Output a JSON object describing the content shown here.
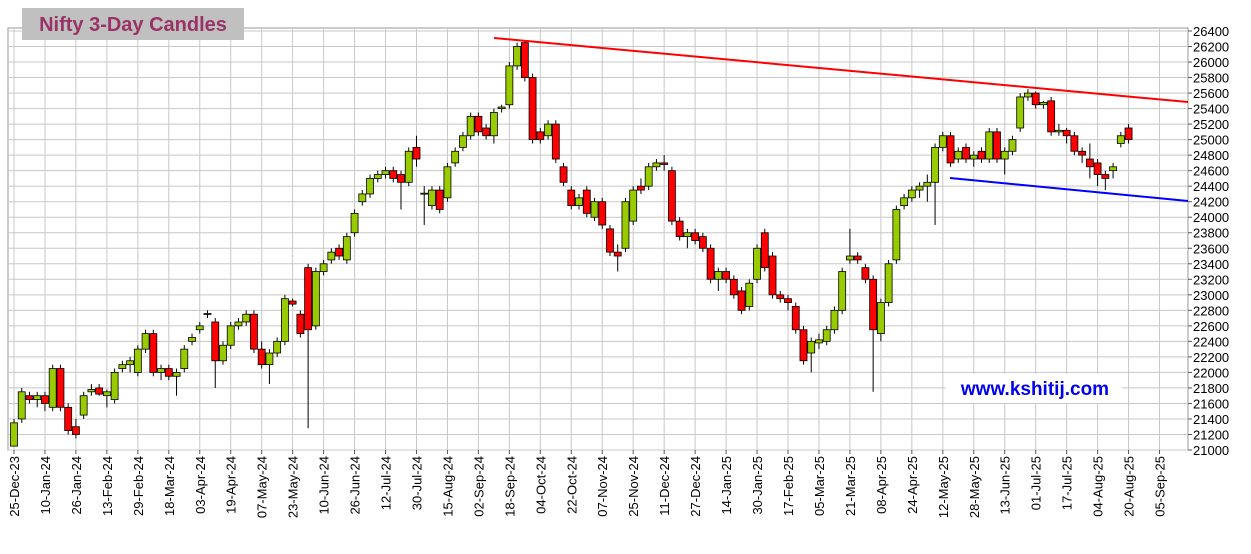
{
  "chart_data": {
    "type": "candlestick",
    "title": "Nifty 3-Day Candles",
    "watermark": "www.kshitij.com",
    "categories": [
      "25-Dec-23",
      null,
      null,
      null,
      "10-Jan-24",
      null,
      null,
      null,
      "26-Jan-24",
      null,
      null,
      null,
      "13-Feb-24",
      null,
      null,
      null,
      "29-Feb-24",
      null,
      null,
      null,
      "18-Mar-24",
      null,
      null,
      null,
      "03-Apr-24",
      null,
      null,
      null,
      "19-Apr-24",
      null,
      null,
      null,
      "07-May-24",
      null,
      null,
      null,
      "23-May-24",
      null,
      null,
      null,
      "10-Jun-24",
      null,
      null,
      null,
      "26-Jun-24",
      null,
      null,
      null,
      "12-Jul-24",
      null,
      null,
      null,
      "30-Jul-24",
      null,
      null,
      null,
      "15-Aug-24",
      null,
      null,
      null,
      "02-Sep-24",
      null,
      null,
      null,
      "18-Sep-24",
      null,
      null,
      null,
      "04-Oct-24",
      null,
      null,
      null,
      "22-Oct-24",
      null,
      null,
      null,
      "07-Nov-24",
      null,
      null,
      null,
      "25-Nov-24",
      null,
      null,
      null,
      "11-Dec-24",
      null,
      null,
      null,
      "27-Dec-24",
      null,
      null,
      null,
      "14-Jan-25",
      null,
      null,
      null,
      "30-Jan-25",
      null,
      null,
      null,
      "17-Feb-25",
      null,
      null,
      null,
      "05-Mar-25",
      null,
      null,
      null,
      "21-Mar-25",
      null,
      null,
      null,
      "08-Apr-25",
      null,
      null,
      null,
      "24-Apr-25",
      null,
      null,
      null,
      "12-May-25",
      null,
      null,
      null,
      "28-May-25",
      null,
      null,
      null,
      "13-Jun-25",
      null,
      null,
      null,
      "01-Jul-25",
      null,
      null,
      null,
      "17-Jul-25",
      null,
      null,
      null,
      "04-Aug-25",
      null,
      null,
      null,
      "20-Aug-25",
      null,
      null,
      null,
      "05-Sep-25"
    ],
    "open": [
      21050,
      21400,
      21700,
      21650,
      21700,
      21550,
      22050,
      21550,
      21300,
      21450,
      21750,
      21800,
      21700,
      21650,
      22050,
      22100,
      22000,
      22300,
      22500,
      22000,
      22050,
      21950,
      22050,
      22400,
      22550,
      22750,
      22650,
      22150,
      22350,
      22600,
      22650,
      22750,
      22300,
      22100,
      22250,
      22400,
      22920,
      22750,
      23350,
      22600,
      23300,
      23450,
      23600,
      23450,
      23800,
      24200,
      24300,
      24500,
      24550,
      24600,
      24550,
      24450,
      24900,
      24300,
      24150,
      24350,
      24250,
      24700,
      24900,
      25050,
      25300,
      25150,
      25050,
      25400,
      25450,
      25950,
      26250,
      25800,
      25100,
      25050,
      25200,
      24650,
      24350,
      24150,
      24350,
      24000,
      24200,
      23850,
      23550,
      23600,
      23950,
      24400,
      24400,
      24650,
      24700,
      24600,
      23950,
      23750,
      23800,
      23750,
      23600,
      23200,
      23300,
      23200,
      23050,
      22850,
      23200,
      23800,
      23500,
      23000,
      22950,
      22850,
      22550,
      22250,
      22380,
      22400,
      22550,
      22800,
      23450,
      23500,
      23350,
      23200,
      22500,
      22900,
      23450,
      24150,
      24250,
      24350,
      24400,
      24450,
      24900,
      25050,
      24750,
      24900,
      24750,
      24850,
      24750,
      25100,
      24750,
      24850,
      25150,
      25550,
      25600,
      25450,
      25500,
      25100,
      25120,
      25050,
      24850,
      24750,
      24700,
      24550,
      24600,
      24950,
      25150,
      null,
      null,
      null,
      null
    ],
    "high": [
      21400,
      21800,
      21750,
      21750,
      21750,
      22100,
      22100,
      21600,
      21400,
      21750,
      21850,
      21850,
      21780,
      22050,
      22150,
      22200,
      22350,
      22550,
      22550,
      22100,
      22100,
      22050,
      22350,
      22500,
      22650,
      22800,
      22700,
      22400,
      22650,
      22700,
      22800,
      22800,
      22400,
      22300,
      22450,
      23000,
      22950,
      22800,
      23400,
      23350,
      23450,
      23600,
      23650,
      23800,
      24100,
      24350,
      24550,
      24600,
      24650,
      24650,
      24600,
      24900,
      25050,
      24400,
      24400,
      24400,
      24700,
      24900,
      25100,
      25350,
      25350,
      25200,
      25400,
      25450,
      26000,
      26250,
      26280,
      25850,
      25150,
      25250,
      25250,
      24700,
      24400,
      24300,
      24400,
      24250,
      24250,
      23900,
      23650,
      24250,
      24400,
      24500,
      24700,
      24750,
      24800,
      24650,
      24000,
      23850,
      23850,
      23800,
      23650,
      23350,
      23350,
      23250,
      23100,
      23200,
      23650,
      23850,
      23550,
      23050,
      23000,
      22900,
      22600,
      22450,
      22500,
      22600,
      22850,
      23350,
      23850,
      23550,
      23400,
      23250,
      22950,
      23450,
      24150,
      24300,
      24400,
      24450,
      24550,
      24950,
      25100,
      25100,
      24900,
      24950,
      24850,
      24900,
      25150,
      25150,
      24900,
      25050,
      25600,
      25650,
      25620,
      25500,
      25550,
      25200,
      25150,
      25100,
      24900,
      24950,
      24750,
      24600,
      24700,
      25100,
      25200,
      null,
      null,
      null,
      null
    ],
    "low": [
      21050,
      21350,
      21600,
      21550,
      21500,
      21500,
      21500,
      21200,
      21150,
      21400,
      21700,
      21700,
      21550,
      21600,
      22000,
      22000,
      21950,
      22250,
      21950,
      21900,
      21900,
      21700,
      22000,
      22350,
      22500,
      22700,
      21800,
      22100,
      22300,
      22550,
      22600,
      22250,
      22050,
      21850,
      22200,
      22350,
      22850,
      22450,
      21280,
      22550,
      23250,
      23400,
      23450,
      23400,
      23750,
      24150,
      24250,
      24450,
      24500,
      24450,
      24100,
      24400,
      24650,
      23900,
      24100,
      24050,
      24200,
      24650,
      24850,
      25000,
      25050,
      25000,
      24950,
      25350,
      25400,
      25900,
      25750,
      24950,
      24950,
      25000,
      24700,
      24400,
      24100,
      24100,
      24000,
      23950,
      23850,
      23500,
      23300,
      23550,
      23900,
      24300,
      24350,
      24600,
      24600,
      23900,
      23700,
      23600,
      23650,
      23550,
      23150,
      23050,
      23150,
      22950,
      22750,
      22800,
      23150,
      23300,
      22950,
      22900,
      22800,
      22500,
      22100,
      22000,
      22300,
      22350,
      22500,
      22750,
      23400,
      23400,
      23150,
      21750,
      22400,
      22850,
      23400,
      24100,
      24200,
      24250,
      24200,
      23900,
      24850,
      24650,
      24700,
      24700,
      24650,
      24700,
      24700,
      24700,
      24550,
      24800,
      25100,
      25500,
      25400,
      25400,
      25050,
      25050,
      24950,
      24800,
      24700,
      24500,
      24400,
      24350,
      24500,
      24900,
      24950,
      null,
      null,
      null,
      null
    ],
    "close": [
      21350,
      21750,
      21650,
      21700,
      21600,
      22050,
      21550,
      21250,
      21200,
      21700,
      21780,
      21720,
      21750,
      22000,
      22100,
      22150,
      22300,
      22500,
      22000,
      22050,
      21950,
      22000,
      22300,
      22450,
      22600,
      22760,
      22150,
      22350,
      22600,
      22650,
      22750,
      22300,
      22100,
      22250,
      22400,
      22950,
      22880,
      22500,
      22550,
      23300,
      23400,
      23550,
      23500,
      23750,
      24050,
      24300,
      24500,
      24550,
      24600,
      24500,
      24450,
      24850,
      24750,
      24310,
      24350,
      24100,
      24650,
      24850,
      25050,
      25300,
      25100,
      25050,
      25350,
      25420,
      25950,
      26200,
      25800,
      25000,
      25000,
      25200,
      24750,
      24450,
      24150,
      24250,
      24050,
      24200,
      23900,
      23550,
      23500,
      24200,
      24350,
      24350,
      24650,
      24700,
      24680,
      23950,
      23750,
      23800,
      23700,
      23600,
      23200,
      23300,
      23200,
      23000,
      22800,
      23150,
      23600,
      23350,
      23000,
      22950,
      22900,
      22550,
      22150,
      22400,
      22420,
      22550,
      22800,
      23300,
      23500,
      23450,
      23200,
      22550,
      22900,
      23400,
      24100,
      24250,
      24350,
      24400,
      24450,
      24900,
      25050,
      24700,
      24850,
      24750,
      24800,
      24750,
      25100,
      24750,
      24850,
      25000,
      25550,
      25600,
      25450,
      25480,
      25100,
      25120,
      25050,
      24850,
      24800,
      24650,
      24550,
      24500,
      24650,
      25050,
      25000,
      null,
      null,
      null,
      null
    ],
    "up_color": "#99cc00",
    "down_color": "#ff0000",
    "ylim": [
      21000,
      26400
    ],
    "yticks": [
      21000,
      21200,
      21400,
      21600,
      21800,
      22000,
      22200,
      22400,
      22600,
      22800,
      23000,
      23200,
      23400,
      23600,
      23800,
      24000,
      24200,
      24400,
      24600,
      24800,
      25000,
      25200,
      25400,
      25600,
      25800,
      26000,
      26200,
      26400
    ],
    "grid": true
  }
}
